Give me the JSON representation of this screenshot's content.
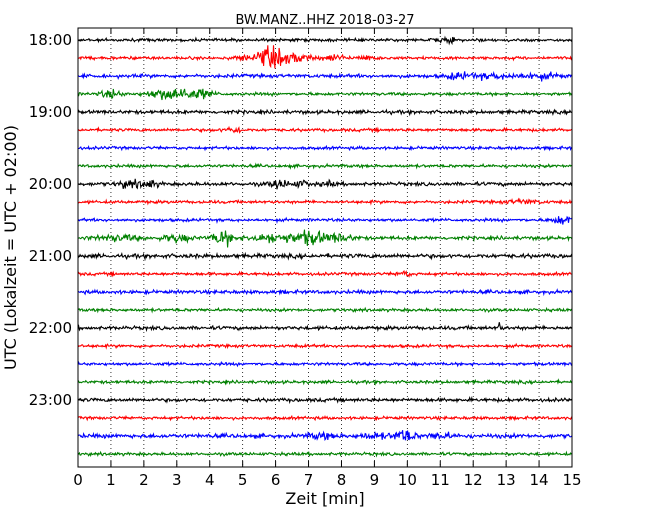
{
  "chart_data": {
    "type": "line",
    "title": "BW.MANZ..HHZ 2018-03-27",
    "xlabel": "Zeit  [min]",
    "ylabel": "UTC (Lokalzeit = UTC + 02:00)",
    "xlim": [
      0,
      15
    ],
    "x_ticks": [
      0,
      1,
      2,
      3,
      4,
      5,
      6,
      7,
      8,
      9,
      10,
      11,
      12,
      13,
      14,
      15
    ],
    "y_tick_labels": [
      "18:00",
      "19:00",
      "20:00",
      "21:00",
      "22:00",
      "23:00"
    ],
    "y_tick_rows": [
      0,
      4,
      8,
      12,
      16,
      20
    ],
    "row_minutes": 15,
    "grid": "vertical dotted",
    "line_colors": [
      "#000000",
      "#ff0000",
      "#0000ff",
      "#008000"
    ],
    "series": [
      {
        "start": "18:00",
        "base": 1.0,
        "events": [
          [
            11.3,
            1.3,
            0.2
          ],
          [
            10.9,
            0.8,
            0.2
          ]
        ]
      },
      {
        "start": "18:15",
        "base": 1.0,
        "events": [
          [
            5.8,
            6.5,
            0.4
          ],
          [
            6.6,
            3.0,
            0.5
          ],
          [
            7.8,
            2.2,
            0.3
          ],
          [
            8.8,
            1.3,
            0.3
          ],
          [
            5.0,
            1.2,
            0.3
          ]
        ]
      },
      {
        "start": "18:30",
        "base": 1.2,
        "events": [
          [
            11.5,
            1.8,
            0.3
          ],
          [
            12.5,
            1.4,
            0.8
          ],
          [
            14.0,
            1.6,
            0.6
          ]
        ]
      },
      {
        "start": "18:45",
        "base": 1.0,
        "events": [
          [
            1.0,
            2.5,
            0.3
          ],
          [
            2.3,
            1.8,
            0.3
          ],
          [
            3.0,
            4.5,
            0.5
          ],
          [
            3.8,
            2.5,
            0.3
          ]
        ]
      },
      {
        "start": "19:00",
        "base": 1.2,
        "events": []
      },
      {
        "start": "19:15",
        "base": 1.0,
        "events": [
          [
            4.7,
            1.6,
            0.3
          ]
        ]
      },
      {
        "start": "19:30",
        "base": 1.0,
        "events": []
      },
      {
        "start": "19:45",
        "base": 1.0,
        "events": []
      },
      {
        "start": "20:00",
        "base": 1.2,
        "events": [
          [
            1.5,
            2.0,
            0.3
          ],
          [
            2.1,
            2.5,
            0.3
          ],
          [
            6.1,
            3.0,
            0.25
          ],
          [
            6.8,
            1.8,
            0.3
          ],
          [
            7.6,
            1.4,
            0.2
          ]
        ]
      },
      {
        "start": "20:15",
        "base": 1.0,
        "events": [
          [
            13.5,
            1.2,
            0.5
          ]
        ]
      },
      {
        "start": "20:30",
        "base": 1.0,
        "events": [
          [
            14.7,
            3.0,
            0.3
          ]
        ]
      },
      {
        "start": "20:45",
        "base": 1.2,
        "events": [
          [
            1.2,
            1.8,
            0.6
          ],
          [
            3.0,
            2.5,
            0.4
          ],
          [
            4.4,
            5.0,
            0.3
          ],
          [
            5.4,
            2.2,
            0.3
          ],
          [
            6.0,
            3.0,
            0.3
          ],
          [
            7.0,
            4.5,
            0.6
          ],
          [
            8.0,
            2.2,
            0.4
          ]
        ]
      },
      {
        "start": "21:00",
        "base": 1.4,
        "events": []
      },
      {
        "start": "21:15",
        "base": 1.0,
        "events": [
          [
            9.9,
            1.8,
            0.2
          ]
        ]
      },
      {
        "start": "21:30",
        "base": 1.2,
        "events": []
      },
      {
        "start": "21:45",
        "base": 1.0,
        "events": []
      },
      {
        "start": "22:00",
        "base": 1.2,
        "events": [
          [
            12.8,
            4.0,
            0.05
          ]
        ]
      },
      {
        "start": "22:15",
        "base": 1.0,
        "events": []
      },
      {
        "start": "22:30",
        "base": 1.0,
        "events": []
      },
      {
        "start": "22:45",
        "base": 1.0,
        "events": []
      },
      {
        "start": "23:00",
        "base": 1.2,
        "events": []
      },
      {
        "start": "23:15",
        "base": 1.0,
        "events": []
      },
      {
        "start": "23:30",
        "base": 1.4,
        "events": [
          [
            7.4,
            1.6,
            0.4
          ],
          [
            9.0,
            1.6,
            0.4
          ],
          [
            9.9,
            4.0,
            0.3
          ],
          [
            11.0,
            2.2,
            0.3
          ]
        ]
      },
      {
        "start": "23:45",
        "base": 1.0,
        "events": []
      }
    ]
  }
}
